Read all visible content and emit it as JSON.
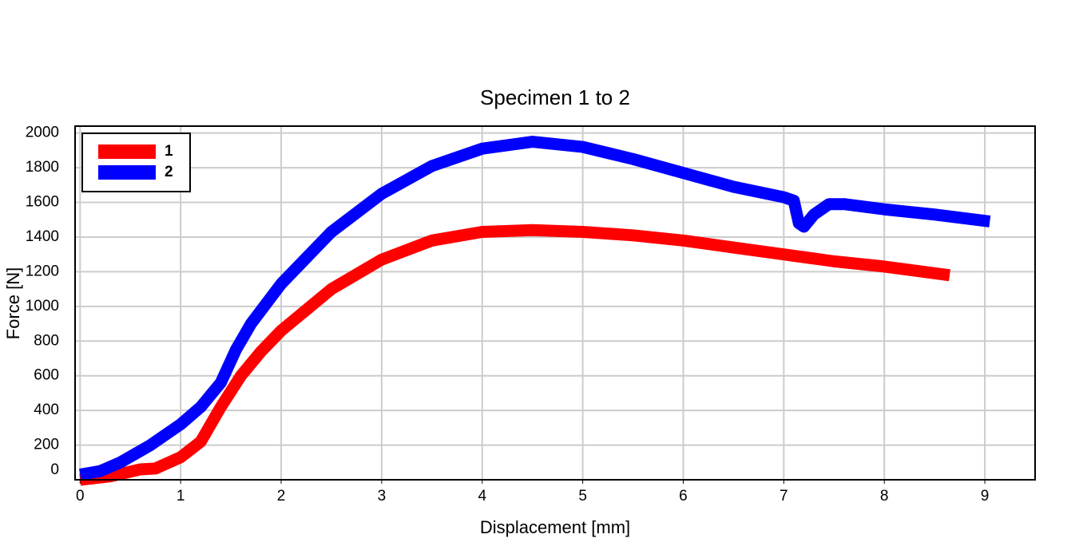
{
  "chart_data": {
    "type": "line",
    "title": "Specimen 1 to 2",
    "x_label": "Displacement [mm]",
    "y_label": "Force [N]",
    "xlim": [
      -0.05,
      9.5
    ],
    "xticks": [
      0,
      1,
      2,
      3,
      4,
      5,
      6,
      7,
      8,
      9
    ],
    "ylim": [
      0,
      2040
    ],
    "yticks": [
      0,
      200,
      400,
      600,
      800,
      1000,
      1200,
      1400,
      1600,
      1800,
      2000
    ],
    "grid": true,
    "legend": "upper left",
    "series": [
      {
        "name": "1",
        "color": "#ff0000",
        "x": [
          0,
          0.3,
          0.6,
          0.75,
          1,
          1.2,
          1.4,
          1.6,
          1.8,
          2,
          2.5,
          3,
          3.5,
          4,
          4.5,
          5,
          5.5,
          6,
          6.5,
          7,
          7.5,
          8,
          8.65
        ],
        "values": [
          0,
          20,
          60,
          65,
          130,
          220,
          420,
          600,
          740,
          860,
          1100,
          1270,
          1380,
          1430,
          1440,
          1430,
          1410,
          1380,
          1340,
          1300,
          1260,
          1230,
          1180
        ]
      },
      {
        "name": "2",
        "color": "#0000ff",
        "x": [
          0,
          0.2,
          0.4,
          0.7,
          1,
          1.2,
          1.4,
          1.55,
          1.7,
          2,
          2.5,
          3,
          3.5,
          4,
          4.5,
          5,
          5.5,
          6,
          6.5,
          7,
          7.1,
          7.15,
          7.2,
          7.3,
          7.45,
          7.6,
          8,
          8.5,
          9.05
        ],
        "values": [
          30,
          50,
          100,
          200,
          320,
          420,
          560,
          750,
          900,
          1130,
          1430,
          1650,
          1810,
          1910,
          1950,
          1920,
          1850,
          1770,
          1690,
          1630,
          1610,
          1480,
          1460,
          1530,
          1590,
          1590,
          1560,
          1530,
          1490
        ]
      }
    ]
  }
}
